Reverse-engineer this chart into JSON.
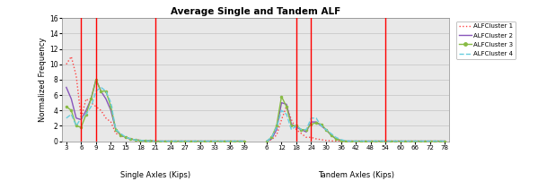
{
  "title": "Average Single and Tandem ALF",
  "ylabel": "Normalized Frequency",
  "xlabel_single": "Single Axles (Kips)",
  "xlabel_tandem": "Tandem Axles (Kips)",
  "single_ticks": [
    3,
    6,
    9,
    12,
    15,
    18,
    21,
    24,
    27,
    30,
    33,
    36,
    39
  ],
  "tandem_ticks": [
    6,
    12,
    18,
    24,
    30,
    36,
    42,
    48,
    54,
    60,
    66,
    72,
    78
  ],
  "ylim": [
    0,
    16
  ],
  "yticks": [
    0,
    2,
    4,
    6,
    8,
    10,
    12,
    14,
    16
  ],
  "red_lines_single": [
    6,
    9,
    21
  ],
  "red_lines_tandem": [
    18,
    24,
    54
  ],
  "single_x": [
    3,
    4,
    5,
    6,
    7,
    8,
    9,
    10,
    11,
    12,
    13,
    14,
    15,
    16,
    17,
    18,
    19,
    20,
    21,
    22,
    23,
    24,
    25,
    26,
    27,
    28,
    29,
    30,
    31,
    32,
    33,
    34,
    35,
    36,
    37,
    38,
    39
  ],
  "tandem_x": [
    6,
    8,
    10,
    12,
    14,
    16,
    18,
    20,
    22,
    24,
    26,
    28,
    30,
    32,
    34,
    36,
    38,
    40,
    42,
    44,
    46,
    48,
    50,
    52,
    54,
    56,
    58,
    60,
    62,
    64,
    66,
    68,
    70,
    72,
    74,
    76,
    78
  ],
  "cluster1_single": [
    10.0,
    11.0,
    8.5,
    3.0,
    5.5,
    5.0,
    4.5,
    4.0,
    3.0,
    2.5,
    1.0,
    0.8,
    0.4,
    0.3,
    0.2,
    0.1,
    0.05,
    0.05,
    0.0,
    0.0,
    0.0,
    0.0,
    0.0,
    0.0,
    0.0,
    0.0,
    0.0,
    0.0,
    0.0,
    0.0,
    0.0,
    0.0,
    0.0,
    0.0,
    0.0,
    0.0,
    0.0
  ],
  "cluster2_single": [
    7.0,
    5.5,
    3.0,
    2.8,
    4.0,
    5.5,
    8.0,
    6.5,
    5.5,
    4.0,
    1.5,
    0.8,
    0.5,
    0.3,
    0.15,
    0.1,
    0.05,
    0.05,
    0.0,
    0.0,
    0.0,
    0.0,
    0.0,
    0.0,
    0.0,
    0.0,
    0.0,
    0.0,
    0.0,
    0.0,
    0.0,
    0.0,
    0.0,
    0.0,
    0.0,
    0.0,
    0.0
  ],
  "cluster3_single": [
    4.5,
    4.0,
    2.0,
    1.8,
    3.5,
    5.5,
    8.0,
    6.5,
    6.5,
    4.5,
    1.5,
    0.8,
    0.5,
    0.3,
    0.15,
    0.1,
    0.05,
    0.02,
    0.0,
    0.0,
    0.0,
    0.0,
    0.0,
    0.0,
    0.0,
    0.0,
    0.0,
    0.0,
    0.0,
    0.0,
    0.0,
    0.0,
    0.0,
    0.0,
    0.0,
    0.0,
    0.0
  ],
  "cluster4_single": [
    3.0,
    3.5,
    2.0,
    3.0,
    3.5,
    4.5,
    6.5,
    7.0,
    6.5,
    5.0,
    1.5,
    1.0,
    0.5,
    0.3,
    0.15,
    0.1,
    0.05,
    0.02,
    0.0,
    0.0,
    0.0,
    0.0,
    0.0,
    0.0,
    0.0,
    0.0,
    0.0,
    0.0,
    0.0,
    0.0,
    0.0,
    0.0,
    0.0,
    0.0,
    0.0,
    0.0,
    0.0
  ],
  "cluster1_tandem": [
    0.0,
    0.2,
    0.8,
    2.8,
    4.5,
    2.8,
    1.5,
    1.0,
    0.5,
    0.5,
    0.3,
    0.2,
    0.1,
    0.05,
    0.0,
    0.0,
    0.0,
    0.0,
    0.0,
    0.0,
    0.0,
    0.0,
    0.0,
    0.0,
    0.0,
    0.0,
    0.0,
    0.0,
    0.0,
    0.0,
    0.0,
    0.0,
    0.0,
    0.0,
    0.0,
    0.0,
    0.0
  ],
  "cluster2_tandem": [
    0.0,
    0.3,
    1.5,
    5.0,
    4.8,
    2.2,
    1.8,
    1.5,
    1.2,
    2.5,
    2.5,
    2.0,
    1.5,
    0.8,
    0.3,
    0.1,
    0.0,
    0.0,
    0.0,
    0.0,
    0.0,
    0.0,
    0.0,
    0.0,
    0.0,
    0.0,
    0.0,
    0.0,
    0.0,
    0.0,
    0.0,
    0.0,
    0.0,
    0.0,
    0.0,
    0.0,
    0.0
  ],
  "cluster3_tandem": [
    0.0,
    0.5,
    2.0,
    5.8,
    4.5,
    2.0,
    2.0,
    1.5,
    1.5,
    2.2,
    2.4,
    2.2,
    1.5,
    0.8,
    0.3,
    0.1,
    0.0,
    0.0,
    0.0,
    0.0,
    0.0,
    0.0,
    0.0,
    0.0,
    0.0,
    0.0,
    0.0,
    0.0,
    0.0,
    0.0,
    0.0,
    0.0,
    0.0,
    0.0,
    0.0,
    0.0,
    0.0
  ],
  "cluster4_tandem": [
    0.0,
    0.5,
    1.8,
    4.0,
    3.5,
    1.5,
    2.0,
    1.5,
    1.5,
    3.0,
    3.0,
    2.0,
    1.5,
    1.0,
    0.5,
    0.2,
    0.05,
    0.0,
    0.0,
    0.0,
    0.0,
    0.0,
    0.0,
    0.0,
    0.0,
    0.0,
    0.0,
    0.0,
    0.0,
    0.0,
    0.0,
    0.0,
    0.0,
    0.0,
    0.0,
    0.0,
    0.0
  ],
  "color1": "#FF4444",
  "color2": "#8855BB",
  "color3": "#88BB44",
  "color4": "#66CCDD",
  "linewidth": 1.0,
  "bg_color": "#E8E8E8",
  "fig_bg": "#FFFFFF",
  "legend_labels": [
    "ALFCluster 1",
    "ALFCluster 2",
    "ALFCluster 3",
    "ALFCluster 4"
  ]
}
